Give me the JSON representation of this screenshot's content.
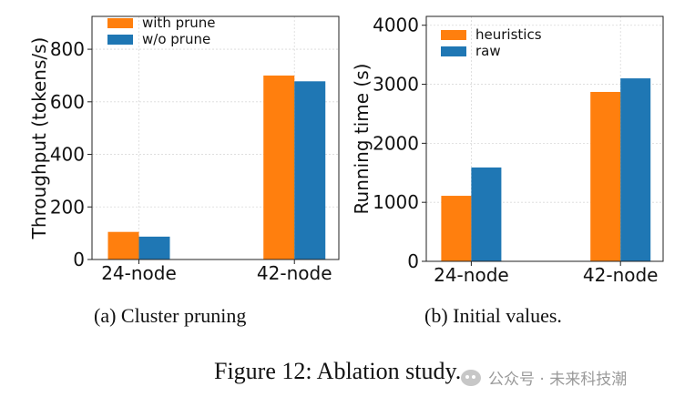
{
  "chart_data": [
    {
      "type": "bar",
      "title": "",
      "categories": [
        "24-node",
        "42-node"
      ],
      "series": [
        {
          "name": "with prune",
          "values": [
            105,
            700
          ],
          "color": "#ff7f0e"
        },
        {
          "name": "w/o prune",
          "values": [
            87,
            678
          ],
          "color": "#1f77b4"
        }
      ],
      "yticks": [
        0,
        200,
        400,
        600,
        800
      ],
      "ylim": [
        0,
        925
      ],
      "xlabel": "",
      "ylabel": "Throughput (tokens/s)",
      "legend": "top-left",
      "grid": true
    },
    {
      "type": "bar",
      "title": "",
      "categories": [
        "24-node",
        "42-node"
      ],
      "series": [
        {
          "name": "heuristics",
          "values": [
            1110,
            2870
          ],
          "color": "#ff7f0e"
        },
        {
          "name": "raw",
          "values": [
            1590,
            3100
          ],
          "color": "#1f77b4"
        }
      ],
      "yticks": [
        0,
        1000,
        2000,
        3000,
        4000
      ],
      "ylim": [
        0,
        4150
      ],
      "xlabel": "",
      "ylabel": "Running time (s)",
      "legend": "top-left",
      "grid": true
    }
  ],
  "captions": {
    "a": "(a) Cluster pruning",
    "b": "(b) Initial values.",
    "figure": "Figure 12: Ablation study."
  },
  "watermark": {
    "text": "公众号 · 未来科技潮",
    "icon": "wechat-icon"
  }
}
